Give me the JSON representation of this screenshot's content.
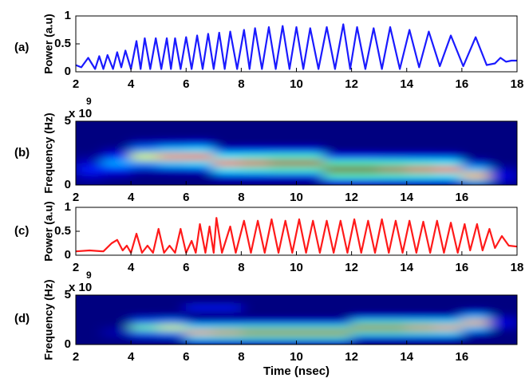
{
  "chart_data": [
    {
      "type": "line",
      "panel_label": "(a)",
      "ylabel": "Power (a.u)",
      "xlim": [
        2,
        18
      ],
      "xticks": [
        2,
        4,
        6,
        8,
        10,
        12,
        14,
        16,
        18
      ],
      "ylim": [
        0,
        1
      ],
      "yticks": [
        0,
        0.5,
        1
      ],
      "series": [
        {
          "color": "#1a1aff",
          "x": [
            2.0,
            2.2,
            2.45,
            2.7,
            2.85,
            3.0,
            3.15,
            3.35,
            3.5,
            3.65,
            3.8,
            4.0,
            4.2,
            4.35,
            4.5,
            4.7,
            4.9,
            5.1,
            5.3,
            5.45,
            5.6,
            5.8,
            6.0,
            6.2,
            6.4,
            6.6,
            6.8,
            7.0,
            7.2,
            7.4,
            7.6,
            7.85,
            8.1,
            8.3,
            8.5,
            8.75,
            9.0,
            9.25,
            9.5,
            9.75,
            10.0,
            10.25,
            10.5,
            10.8,
            11.1,
            11.4,
            11.7,
            11.95,
            12.2,
            12.5,
            12.8,
            13.1,
            13.4,
            13.75,
            14.1,
            14.45,
            14.8,
            15.2,
            15.6,
            16.05,
            16.5,
            16.9,
            17.2,
            17.4,
            17.6,
            17.8,
            18.0
          ],
          "values": [
            0.12,
            0.08,
            0.25,
            0.05,
            0.28,
            0.05,
            0.3,
            0.05,
            0.35,
            0.08,
            0.38,
            0.05,
            0.55,
            0.05,
            0.6,
            0.05,
            0.6,
            0.05,
            0.6,
            0.05,
            0.6,
            0.05,
            0.62,
            0.05,
            0.65,
            0.05,
            0.68,
            0.05,
            0.7,
            0.05,
            0.72,
            0.05,
            0.75,
            0.05,
            0.78,
            0.05,
            0.8,
            0.05,
            0.82,
            0.05,
            0.8,
            0.05,
            0.78,
            0.05,
            0.8,
            0.05,
            0.85,
            0.05,
            0.8,
            0.05,
            0.78,
            0.05,
            0.8,
            0.05,
            0.75,
            0.08,
            0.72,
            0.1,
            0.65,
            0.1,
            0.62,
            0.12,
            0.15,
            0.25,
            0.18,
            0.2,
            0.2
          ]
        }
      ]
    },
    {
      "type": "heatmap",
      "panel_label": "(b)",
      "ylabel": "Frequency (Hz)",
      "y_multiplier": "x 10",
      "y_multiplier_exponent": "9",
      "colormap": "jet",
      "xlim": [
        2,
        18
      ],
      "xticks": [
        2,
        4,
        6,
        8,
        10,
        12,
        14,
        16
      ],
      "ylim": [
        0,
        5
      ],
      "yticks": [
        0,
        5
      ],
      "xbins": [
        2,
        3,
        4,
        5,
        6,
        7,
        8,
        9,
        10,
        11,
        12,
        13,
        14,
        15,
        16,
        17,
        18
      ],
      "ybins": [
        0,
        0.5,
        1,
        1.5,
        2,
        2.5,
        3,
        3.5,
        4,
        4.5,
        5
      ],
      "z": [
        [
          0.02,
          0,
          0,
          0,
          0,
          0,
          0,
          0,
          0,
          0.12,
          0.12,
          0.11,
          0.11,
          0.1,
          0.32,
          0.05
        ],
        [
          0.07,
          0.04,
          0,
          0,
          0,
          0.1,
          0.11,
          0.11,
          0.11,
          0.45,
          0.45,
          0.43,
          0.41,
          0.38,
          0.7,
          0.1
        ],
        [
          0.15,
          0.14,
          0.07,
          0.09,
          0.1,
          0.38,
          0.41,
          0.43,
          0.43,
          1,
          1,
          0.95,
          0.9,
          0.85,
          0.32,
          0.05
        ],
        [
          0.07,
          0.3,
          0.27,
          0.34,
          0.36,
          0.85,
          0.9,
          0.95,
          0.95,
          0.45,
          0.45,
          0.43,
          0.41,
          0.38,
          0.08,
          0
        ],
        [
          0.02,
          0.14,
          0.6,
          0.75,
          0.8,
          0.38,
          0.41,
          0.43,
          0.43,
          0.12,
          0.12,
          0.11,
          0.11,
          0.1,
          0,
          0
        ],
        [
          0,
          0.04,
          0.27,
          0.34,
          0.36,
          0.1,
          0.11,
          0.11,
          0.11,
          0,
          0,
          0,
          0,
          0,
          0,
          0
        ],
        [
          0,
          0,
          0.07,
          0.09,
          0.1,
          0,
          0,
          0,
          0,
          0,
          0,
          0,
          0,
          0,
          0,
          0
        ],
        [
          0,
          0,
          0,
          0,
          0,
          0,
          0,
          0,
          0,
          0,
          0,
          0,
          0,
          0,
          0,
          0
        ],
        [
          0,
          0,
          0,
          0,
          0,
          0,
          0,
          0,
          0,
          0,
          0,
          0,
          0,
          0,
          0,
          0
        ],
        [
          0,
          0,
          0,
          0,
          0,
          0,
          0,
          0,
          0,
          0,
          0,
          0,
          0,
          0,
          0,
          0
        ]
      ]
    },
    {
      "type": "line",
      "panel_label": "(c)",
      "ylabel": "Power (a.u)",
      "xlim": [
        2,
        18
      ],
      "xticks": [
        2,
        4,
        6,
        8,
        10,
        12,
        14,
        16,
        18
      ],
      "ylim": [
        0,
        1
      ],
      "yticks": [
        0,
        0.5,
        1
      ],
      "series": [
        {
          "color": "#ff1a1a",
          "x": [
            2.0,
            2.5,
            3.0,
            3.3,
            3.5,
            3.7,
            3.85,
            4.0,
            4.2,
            4.4,
            4.6,
            4.8,
            5.0,
            5.2,
            5.4,
            5.6,
            5.8,
            6.0,
            6.2,
            6.35,
            6.5,
            6.7,
            6.85,
            7.0,
            7.1,
            7.3,
            7.6,
            7.8,
            8.1,
            8.35,
            8.6,
            8.85,
            9.1,
            9.35,
            9.6,
            9.85,
            10.1,
            10.35,
            10.6,
            10.85,
            11.1,
            11.35,
            11.6,
            11.85,
            12.1,
            12.35,
            12.6,
            12.85,
            13.1,
            13.35,
            13.6,
            13.85,
            14.1,
            14.35,
            14.6,
            14.85,
            15.1,
            15.35,
            15.6,
            15.85,
            16.1,
            16.3,
            16.55,
            16.75,
            17.0,
            17.2,
            17.45,
            17.7,
            18.0
          ],
          "values": [
            0.08,
            0.1,
            0.08,
            0.25,
            0.32,
            0.1,
            0.2,
            0.05,
            0.45,
            0.05,
            0.2,
            0.05,
            0.55,
            0.05,
            0.2,
            0.05,
            0.55,
            0.05,
            0.3,
            0.05,
            0.65,
            0.05,
            0.6,
            0.05,
            0.78,
            0.05,
            0.6,
            0.05,
            0.72,
            0.05,
            0.72,
            0.05,
            0.75,
            0.05,
            0.72,
            0.05,
            0.75,
            0.05,
            0.72,
            0.05,
            0.72,
            0.05,
            0.72,
            0.05,
            0.75,
            0.05,
            0.72,
            0.05,
            0.75,
            0.05,
            0.72,
            0.05,
            0.72,
            0.05,
            0.7,
            0.05,
            0.72,
            0.05,
            0.68,
            0.05,
            0.65,
            0.1,
            0.65,
            0.1,
            0.55,
            0.15,
            0.4,
            0.2,
            0.18
          ]
        }
      ]
    },
    {
      "type": "heatmap",
      "panel_label": "(d)",
      "ylabel": "Frequency (Hz)",
      "y_multiplier": "x 10",
      "y_multiplier_exponent": "9",
      "xlabel": "Time (nsec)",
      "colormap": "jet",
      "xlim": [
        2,
        18
      ],
      "xticks": [
        2,
        4,
        6,
        8,
        10,
        12,
        14,
        16
      ],
      "ylim": [
        0,
        5
      ],
      "yticks": [
        0,
        5
      ],
      "xbins": [
        2,
        3,
        4,
        5,
        6,
        7,
        8,
        9,
        10,
        11,
        12,
        13,
        14,
        15,
        16,
        17,
        18
      ],
      "ybins": [
        0,
        0.5,
        1,
        1.5,
        2,
        2.5,
        3,
        3.5,
        4,
        4.5,
        5
      ],
      "z": [
        [
          0,
          0,
          0,
          0,
          0.1,
          0.11,
          0.11,
          0.11,
          0.11,
          0.11,
          0,
          0,
          0,
          0,
          0,
          0
        ],
        [
          0,
          0.02,
          0.06,
          0.07,
          0.38,
          0.41,
          0.43,
          0.43,
          0.43,
          0.43,
          0.11,
          0.11,
          0.11,
          0.1,
          0,
          0
        ],
        [
          0,
          0.05,
          0.23,
          0.27,
          0.85,
          0.9,
          0.95,
          0.95,
          0.95,
          0.95,
          0.43,
          0.43,
          0.41,
          0.38,
          0.09,
          0
        ],
        [
          0,
          0.02,
          0.5,
          0.6,
          0.38,
          0.41,
          0.43,
          0.43,
          0.43,
          0.43,
          0.95,
          0.95,
          0.9,
          0.85,
          0.34,
          0.05
        ],
        [
          0,
          0,
          0.23,
          0.27,
          0.1,
          0.11,
          0.11,
          0.11,
          0.11,
          0.11,
          0.43,
          0.43,
          0.41,
          0.38,
          0.75,
          0.1
        ],
        [
          0,
          0,
          0.06,
          0.07,
          0,
          0,
          0,
          0,
          0,
          0,
          0.11,
          0.11,
          0.11,
          0.1,
          0.34,
          0.05
        ],
        [
          0,
          0,
          0,
          0,
          0,
          0,
          0,
          0,
          0,
          0,
          0,
          0,
          0,
          0,
          0.09,
          0
        ],
        [
          0,
          0,
          0,
          0,
          0.15,
          0.15,
          0,
          0,
          0,
          0,
          0,
          0,
          0,
          0,
          0,
          0
        ],
        [
          0,
          0,
          0,
          0,
          0,
          0,
          0,
          0,
          0,
          0,
          0,
          0,
          0,
          0,
          0,
          0
        ],
        [
          0,
          0,
          0,
          0,
          0,
          0,
          0,
          0,
          0,
          0,
          0,
          0,
          0,
          0,
          0,
          0
        ]
      ]
    }
  ]
}
